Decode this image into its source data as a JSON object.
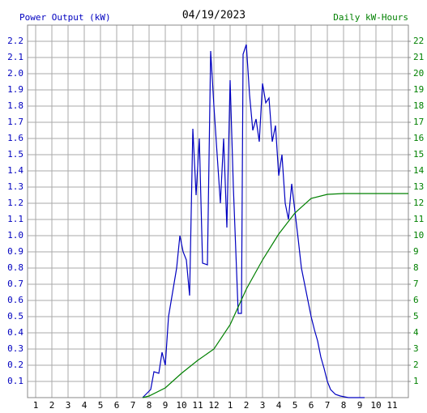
{
  "chart_data": {
    "type": "line",
    "title": "04/19/2023",
    "ylabel": "Power Output (kW)",
    "y2label": "Daily kW-Hours",
    "grid": true,
    "xlim": [
      0.5,
      24
    ],
    "xticks": [
      {
        "value": 1,
        "label": "1"
      },
      {
        "value": 2,
        "label": "2"
      },
      {
        "value": 3,
        "label": "3"
      },
      {
        "value": 4,
        "label": "4"
      },
      {
        "value": 5,
        "label": "5"
      },
      {
        "value": 6,
        "label": "6"
      },
      {
        "value": 7,
        "label": "7"
      },
      {
        "value": 8,
        "label": "8"
      },
      {
        "value": 9,
        "label": "9"
      },
      {
        "value": 10,
        "label": "10"
      },
      {
        "value": 11,
        "label": "11"
      },
      {
        "value": 12,
        "label": "12"
      },
      {
        "value": 13,
        "label": "1"
      },
      {
        "value": 14,
        "label": "2"
      },
      {
        "value": 15,
        "label": "3"
      },
      {
        "value": 16,
        "label": "4"
      },
      {
        "value": 17,
        "label": "5"
      },
      {
        "value": 18,
        "label": "6"
      },
      {
        "value": 19,
        "label": "7"
      },
      {
        "value": 20,
        "label": "8"
      },
      {
        "value": 21,
        "label": "9"
      },
      {
        "value": 22,
        "label": "10"
      },
      {
        "value": 23,
        "label": "11"
      }
    ],
    "ylim": [
      0,
      2.3
    ],
    "yticks": [
      0.1,
      0.2,
      0.3,
      0.4,
      0.5,
      0.6,
      0.7,
      0.8,
      0.9,
      {
        "value": 1.0,
        "label": "1.0"
      },
      1.1,
      1.2,
      1.3,
      1.4,
      1.5,
      1.6,
      1.7,
      1.8,
      1.9,
      {
        "value": 2.0,
        "label": "2.0"
      },
      2.1,
      2.2
    ],
    "y2lim": [
      0,
      23
    ],
    "y2ticks": [
      1,
      2,
      3,
      4,
      5,
      6,
      7,
      8,
      9,
      10,
      11,
      12,
      13,
      14,
      15,
      16,
      17,
      18,
      19,
      20,
      21,
      22
    ],
    "series": [
      {
        "name": "Power Output (kW)",
        "color": "#0000c0",
        "x": [
          7.6,
          7.8,
          8.1,
          8.3,
          8.6,
          8.8,
          9.0,
          9.2,
          9.4,
          9.7,
          9.9,
          10.1,
          10.3,
          10.5,
          10.7,
          10.9,
          11.1,
          11.3,
          11.6,
          11.8,
          12.0,
          12.2,
          12.4,
          12.6,
          12.8,
          13.0,
          13.2,
          13.5,
          13.7,
          13.8,
          14.0,
          14.2,
          14.4,
          14.6,
          14.8,
          15.0,
          15.2,
          15.4,
          15.6,
          15.8,
          16.0,
          16.2,
          16.4,
          16.6,
          16.8,
          17.0,
          17.2,
          17.4,
          17.6,
          17.8,
          18.0,
          18.2,
          18.4,
          18.6,
          18.8,
          19.0,
          19.2,
          19.5,
          19.8,
          20.3,
          21.3
        ],
        "values": [
          0,
          0.02,
          0.05,
          0.16,
          0.15,
          0.28,
          0.2,
          0.5,
          0.62,
          0.8,
          1.0,
          0.9,
          0.85,
          0.63,
          1.66,
          1.25,
          1.6,
          0.83,
          0.82,
          2.14,
          1.8,
          1.5,
          1.2,
          1.6,
          1.05,
          1.96,
          1.3,
          0.52,
          0.52,
          2.12,
          2.18,
          1.87,
          1.65,
          1.72,
          1.58,
          1.94,
          1.82,
          1.85,
          1.58,
          1.68,
          1.37,
          1.5,
          1.2,
          1.1,
          1.32,
          1.15,
          0.98,
          0.8,
          0.7,
          0.6,
          0.5,
          0.42,
          0.35,
          0.25,
          0.18,
          0.1,
          0.05,
          0.02,
          0.01,
          0,
          0
        ]
      },
      {
        "name": "Daily kW-Hours",
        "color": "#008000",
        "axis": "y2",
        "x": [
          7.6,
          8,
          9,
          10,
          11,
          12,
          13,
          14,
          15,
          16,
          17,
          18,
          19,
          20,
          24
        ],
        "values": [
          0,
          0.1,
          0.6,
          1.5,
          2.3,
          3.0,
          4.5,
          6.7,
          8.5,
          10.1,
          11.4,
          12.3,
          12.55,
          12.6,
          12.6
        ]
      }
    ]
  }
}
